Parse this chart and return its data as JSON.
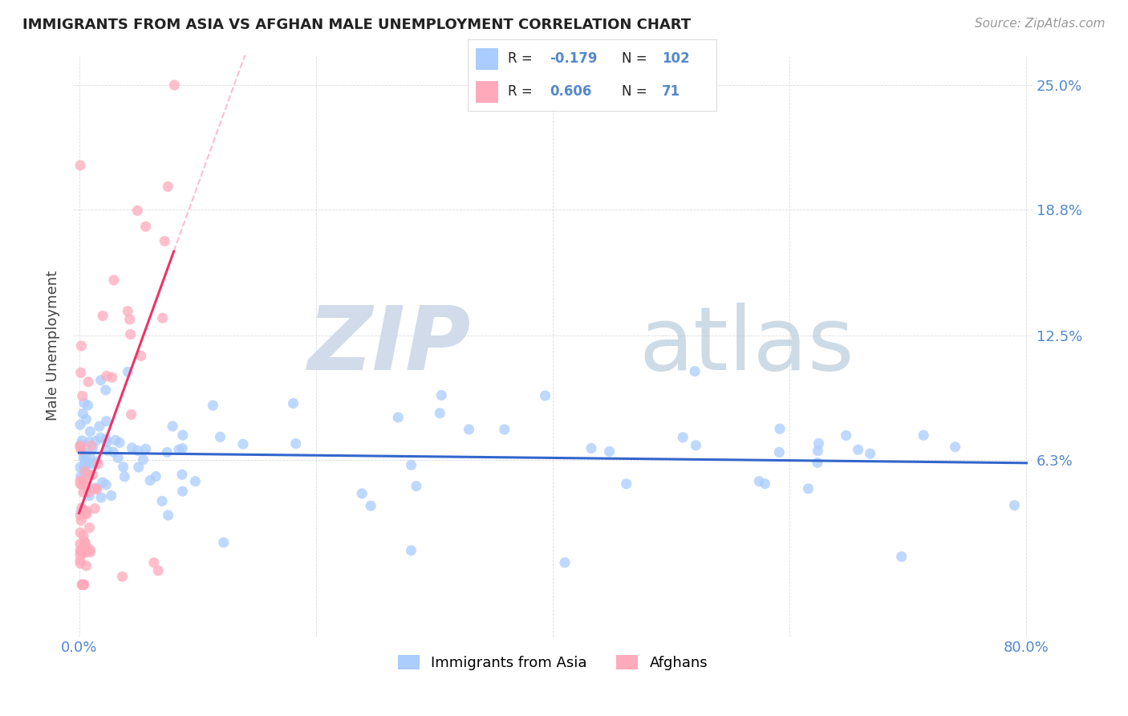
{
  "title": "IMMIGRANTS FROM ASIA VS AFGHAN MALE UNEMPLOYMENT CORRELATION CHART",
  "source": "Source: ZipAtlas.com",
  "ylabel": "Male Unemployment",
  "xlim": [
    -0.005,
    0.805
  ],
  "ylim": [
    -0.025,
    0.265
  ],
  "xticks": [
    0.0,
    0.2,
    0.4,
    0.6,
    0.8
  ],
  "xticklabels": [
    "0.0%",
    "",
    "",
    "",
    "80.0%"
  ],
  "ytick_values": [
    0.063,
    0.125,
    0.188,
    0.25
  ],
  "ytick_labels": [
    "6.3%",
    "12.5%",
    "18.8%",
    "25.0%"
  ],
  "blue_R": -0.179,
  "blue_N": 102,
  "pink_R": 0.606,
  "pink_N": 71,
  "blue_color": "#aaccff",
  "pink_color": "#ffaabb",
  "blue_line_color": "#3366cc",
  "pink_line_color": "#ee3366",
  "pink_dash_color": "#ffaacc",
  "background_color": "#ffffff",
  "grid_color": "#cccccc",
  "title_color": "#222222",
  "source_color": "#999999",
  "tick_color": "#5588cc",
  "legend_label_blue": "Immigrants from Asia",
  "legend_label_pink": "Afghans"
}
